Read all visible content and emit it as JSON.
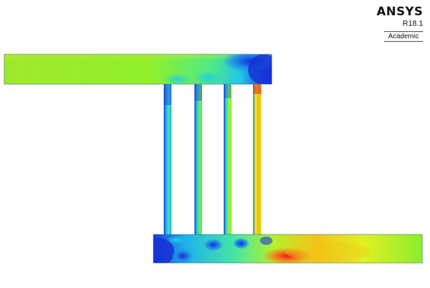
{
  "logo": {
    "brand": "ANSYS",
    "release": "R18.1",
    "edition": "Academic"
  },
  "colors": {
    "background": "#ffffff",
    "contour_low": "#1a3bd6",
    "contour_mid": "#7cf02a",
    "contour_high": "#e8231a"
  },
  "contour_map": {
    "description_free": true,
    "colormap": [
      "#1a3bd6",
      "#1ea9f0",
      "#14e6c8",
      "#7cf02a",
      "#e7f01f",
      "#f79d12",
      "#e8231a"
    ]
  }
}
